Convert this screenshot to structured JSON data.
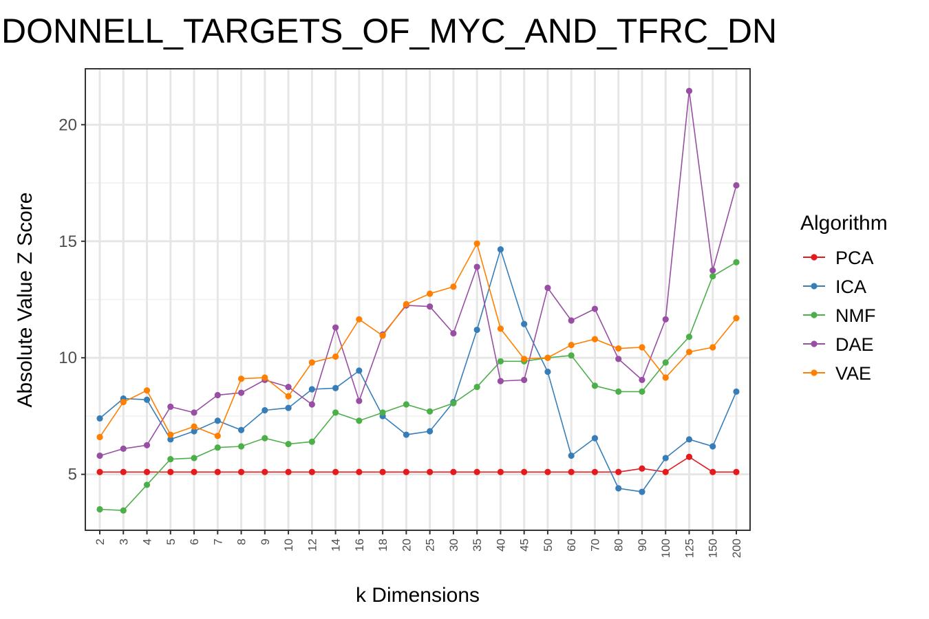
{
  "chart_data": {
    "type": "line",
    "title": "DONNELL_TARGETS_OF_MYC_AND_TFRC_DN",
    "xlabel": "k Dimensions",
    "ylabel": "Absolute Value Z Score",
    "x_scale": "categorical",
    "categories": [
      "2",
      "3",
      "4",
      "5",
      "6",
      "7",
      "8",
      "9",
      "10",
      "12",
      "14",
      "16",
      "18",
      "20",
      "25",
      "30",
      "35",
      "40",
      "45",
      "50",
      "60",
      "70",
      "80",
      "90",
      "100",
      "125",
      "150",
      "200"
    ],
    "ylim": [
      2.6,
      22.4
    ],
    "yticks": [
      5,
      10,
      15,
      20
    ],
    "grid": true,
    "legend": {
      "title": "Algorithm",
      "position": "right"
    },
    "series": [
      {
        "name": "PCA",
        "color": "#E41A1C",
        "values": [
          5.1,
          5.1,
          5.1,
          5.1,
          5.1,
          5.1,
          5.1,
          5.1,
          5.1,
          5.1,
          5.1,
          5.1,
          5.1,
          5.1,
          5.1,
          5.1,
          5.1,
          5.1,
          5.1,
          5.1,
          5.1,
          5.1,
          5.1,
          5.25,
          5.1,
          5.75,
          5.1,
          5.1
        ]
      },
      {
        "name": "ICA",
        "color": "#377EB8",
        "values": [
          7.4,
          8.25,
          8.2,
          6.5,
          6.85,
          7.3,
          6.9,
          7.75,
          7.85,
          8.65,
          8.7,
          9.45,
          7.5,
          6.7,
          6.85,
          8.1,
          11.2,
          14.65,
          11.45,
          9.4,
          5.8,
          6.55,
          4.4,
          4.25,
          5.7,
          6.5,
          6.2,
          8.55
        ]
      },
      {
        "name": "NMF",
        "color": "#4DAF4A",
        "values": [
          3.5,
          3.45,
          4.55,
          5.65,
          5.7,
          6.15,
          6.2,
          6.55,
          6.3,
          6.4,
          7.65,
          7.3,
          7.65,
          8.0,
          7.7,
          8.05,
          8.75,
          9.85,
          9.85,
          10.0,
          10.1,
          8.8,
          8.55,
          8.55,
          9.8,
          10.9,
          13.5,
          14.1
        ]
      },
      {
        "name": "DAE",
        "color": "#984EA3",
        "values": [
          5.8,
          6.1,
          6.25,
          7.9,
          7.65,
          8.4,
          8.5,
          9.05,
          8.75,
          8.0,
          11.3,
          8.15,
          11.0,
          12.25,
          12.2,
          11.05,
          13.9,
          9.0,
          9.05,
          13.0,
          11.6,
          12.1,
          9.95,
          9.05,
          11.65,
          21.45,
          13.75,
          17.4
        ]
      },
      {
        "name": "VAE",
        "color": "#FF7F00",
        "values": [
          6.6,
          8.1,
          8.6,
          6.7,
          7.05,
          6.65,
          9.1,
          9.15,
          8.35,
          9.8,
          10.05,
          11.65,
          10.95,
          12.3,
          12.75,
          13.05,
          14.9,
          11.25,
          9.95,
          10.0,
          10.55,
          10.8,
          10.4,
          10.45,
          9.15,
          10.25,
          10.45,
          11.7
        ]
      }
    ]
  }
}
